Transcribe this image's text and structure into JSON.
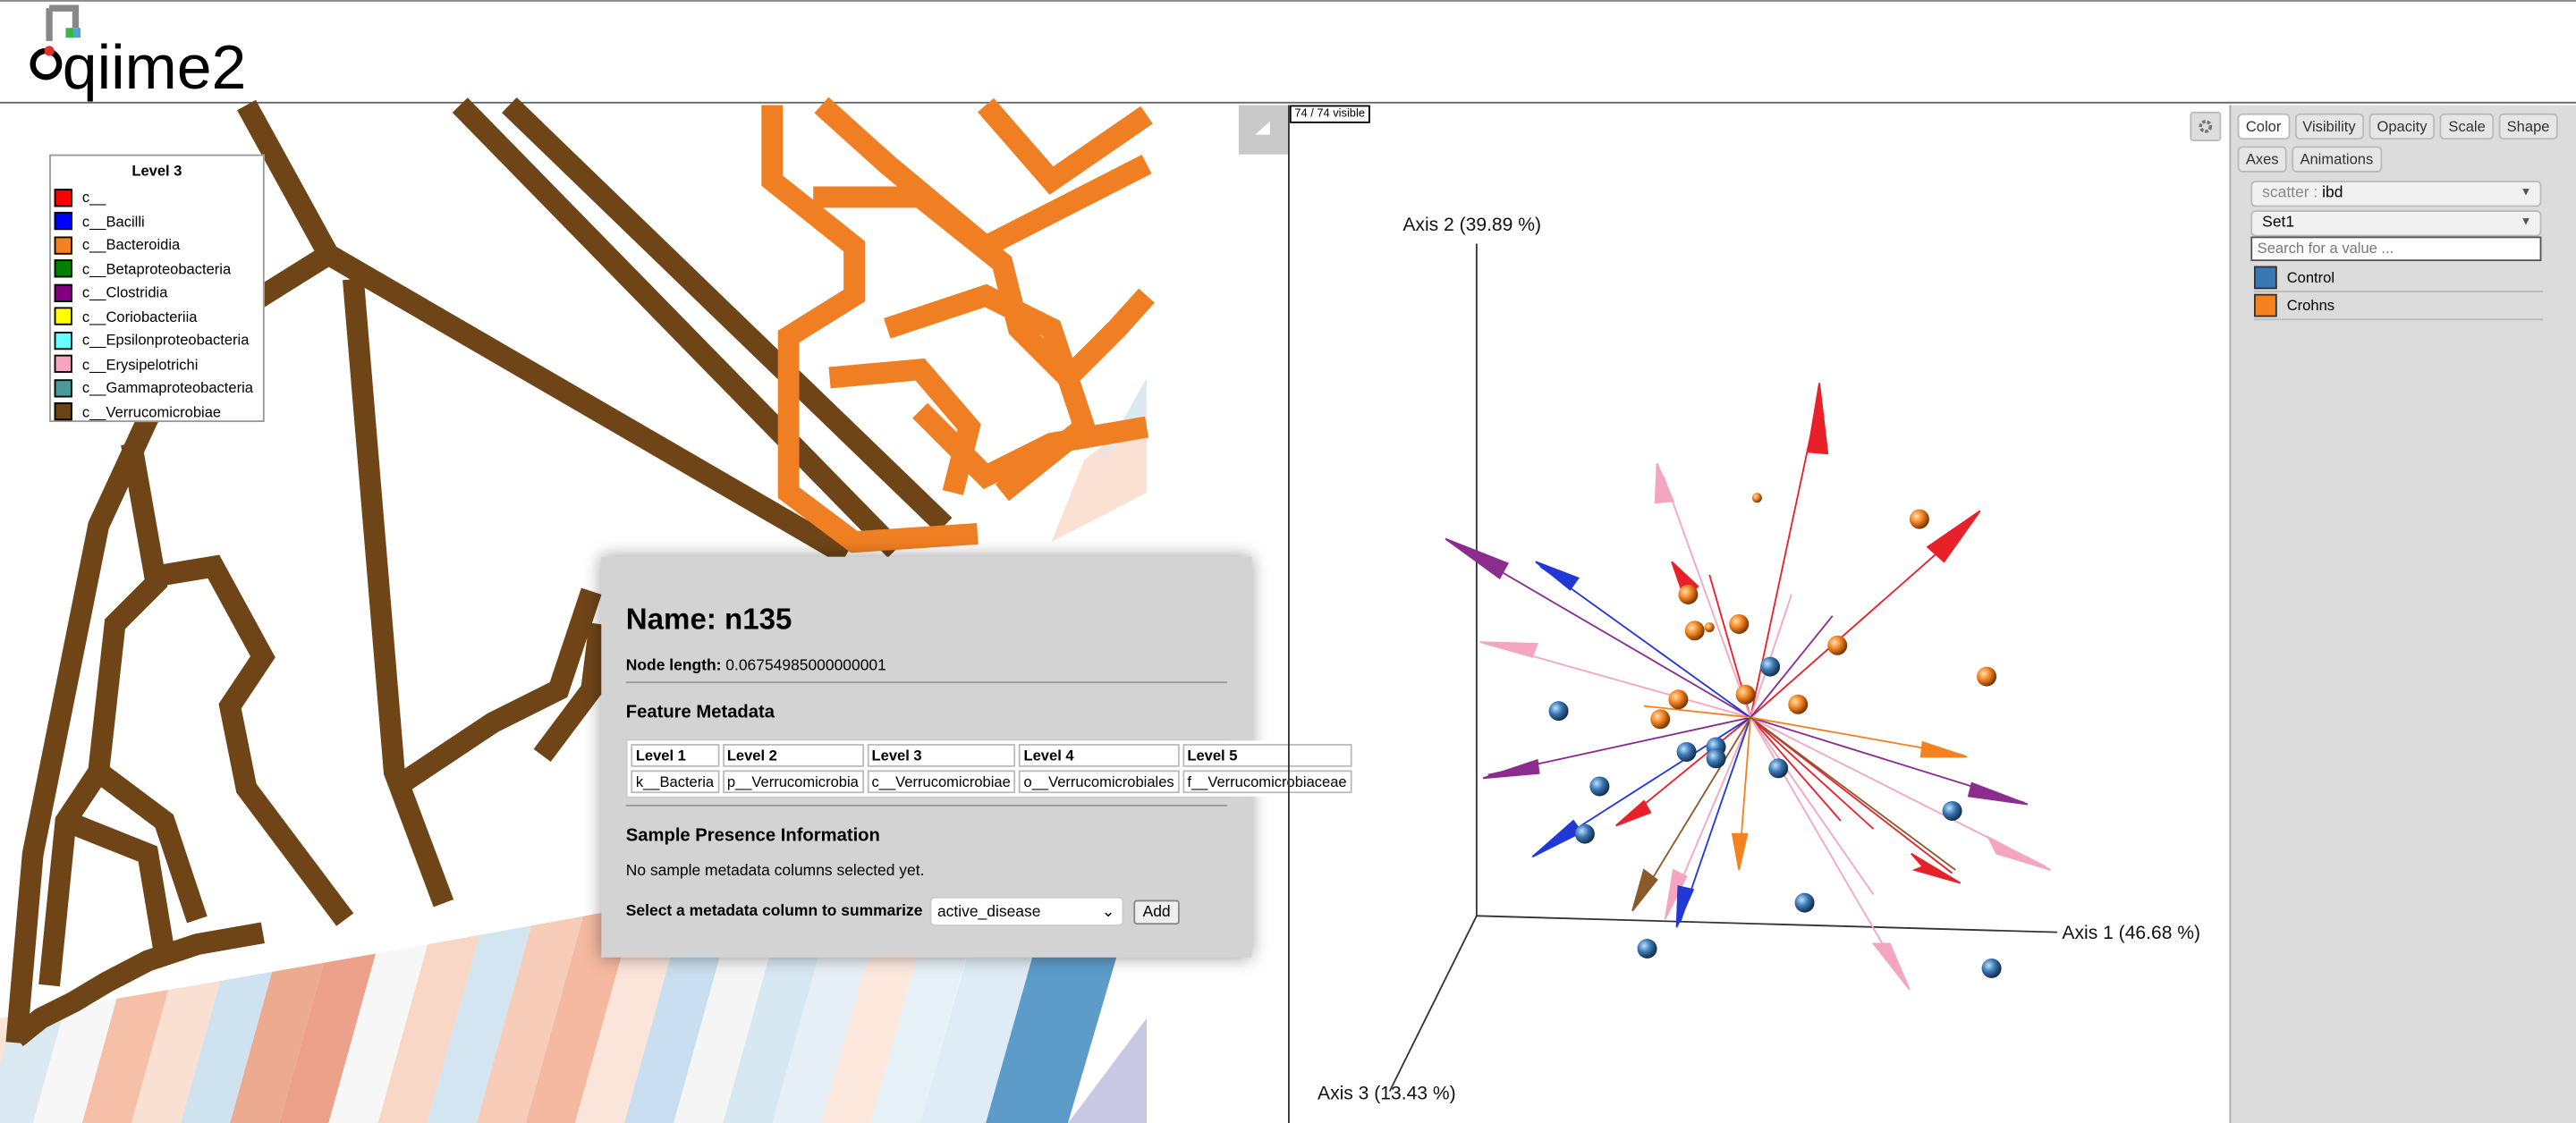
{
  "header": {
    "logo": "qiime2"
  },
  "tree_legend": {
    "title": "Level 3",
    "items": [
      {
        "label": "c__",
        "color": "#ff0000"
      },
      {
        "label": "c__Bacilli",
        "color": "#0000ff"
      },
      {
        "label": "c__Bacteroidia",
        "color": "#f58220"
      },
      {
        "label": "c__Betaproteobacteria",
        "color": "#008000"
      },
      {
        "label": "c__Clostridia",
        "color": "#800080"
      },
      {
        "label": "c__Coriobacteriia",
        "color": "#ffff00"
      },
      {
        "label": "c__Epsilonproteobacteria",
        "color": "#66ffff"
      },
      {
        "label": "c__Erysipelotrichi",
        "color": "#f4a6c0"
      },
      {
        "label": "c__Gammaproteobacteria",
        "color": "#4b9a9a"
      },
      {
        "label": "c__Verrucomicrobiae",
        "color": "#6b4310"
      }
    ]
  },
  "node_popup": {
    "title": "Name: n135",
    "node_length_label": "Node length:",
    "node_length": "0.06754985000000001",
    "feature_metadata_heading": "Feature Metadata",
    "table": {
      "header": [
        "Level 1",
        "Level 2",
        "Level 3",
        "Level 4",
        "Level 5"
      ],
      "rows": [
        [
          "k__Bacteria",
          "p__Verrucomicrobia",
          "c__Verrucomicrobiae",
          "o__Verrucomicrobiales",
          "f__Verrucomicrobiaceae"
        ]
      ]
    },
    "sample_heading": "Sample Presence Information",
    "sample_note": "No sample metadata columns selected yet.",
    "select_label": "Select a metadata column to summarize",
    "select_value": "active_disease",
    "button": "Add"
  },
  "emperor": {
    "visible_count": "74 / 74 visible",
    "axis_labels": {
      "axis2": "Axis 2 (39.89 %)",
      "axis1": "Axis 1 (46.68 %)",
      "axis3": "Axis 3 (13.43 %)"
    },
    "tabs": [
      "Color",
      "Visibility",
      "Opacity",
      "Scale",
      "Shape",
      "Axes",
      "Animations"
    ],
    "color_menu": {
      "scatter_label": "scatter :",
      "scatter_value": "ibd",
      "palette": "Set1",
      "search_placeholder": "Search for a value ...",
      "categories": [
        {
          "label": "Control",
          "color": "#3a77b4"
        },
        {
          "label": "Crohns",
          "color": "#f58220"
        }
      ]
    }
  }
}
